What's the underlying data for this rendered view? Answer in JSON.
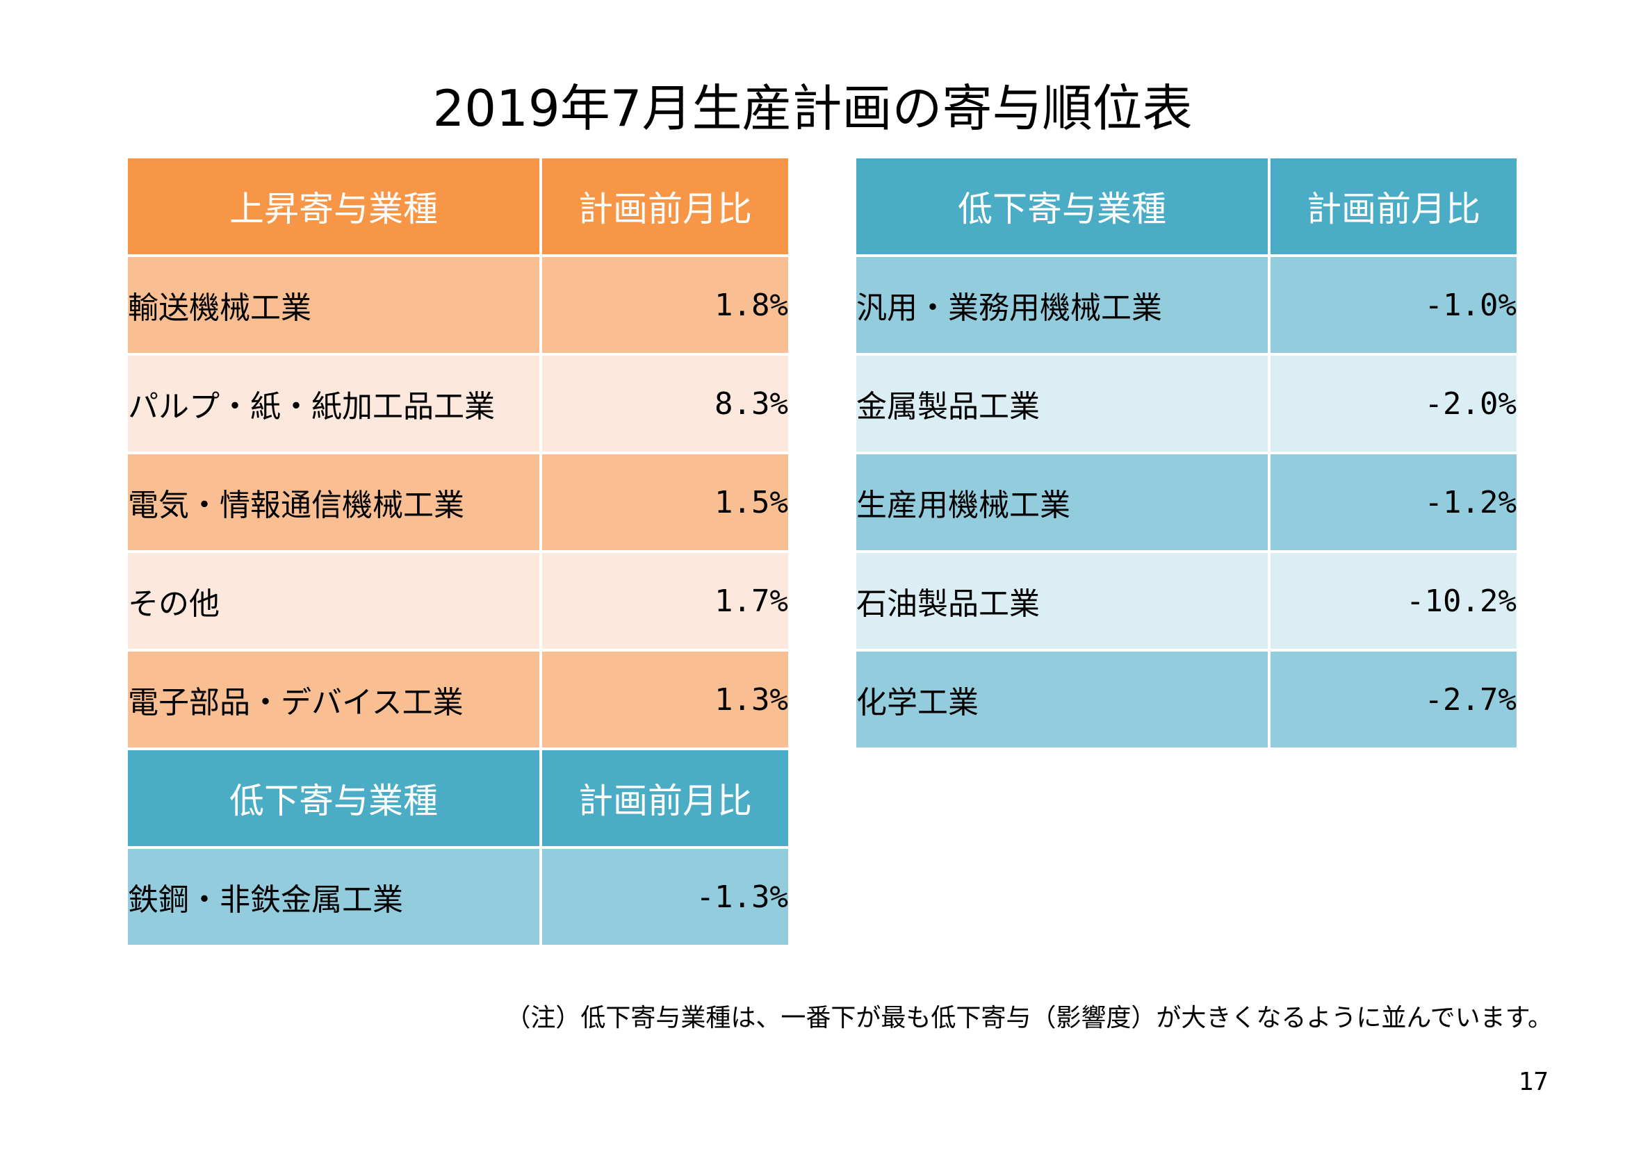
{
  "title": "2019年7月生産計画の寄与順位表",
  "left": {
    "header": {
      "name": "上昇寄与業種",
      "value": "計画前月比"
    },
    "rows": [
      {
        "name": "輸送機械工業",
        "value": "1.8%"
      },
      {
        "name": "パルプ・紙・紙加工品工業",
        "value": "8.3%"
      },
      {
        "name": "電気・情報通信機械工業",
        "value": "1.5%"
      },
      {
        "name": "その他",
        "value": "1.7%"
      },
      {
        "name": "電子部品・デバイス工業",
        "value": "1.3%"
      }
    ],
    "sub_header": {
      "name": "低下寄与業種",
      "value": "計画前月比"
    },
    "sub_rows": [
      {
        "name": "鉄鋼・非鉄金属工業",
        "value": "-1.3%"
      }
    ]
  },
  "right": {
    "header": {
      "name": "低下寄与業種",
      "value": "計画前月比"
    },
    "rows": [
      {
        "name": "汎用・業務用機械工業",
        "value": "-1.0%"
      },
      {
        "name": "金属製品工業",
        "value": "-2.0%"
      },
      {
        "name": "生産用機械工業",
        "value": "-1.2%"
      },
      {
        "name": "石油製品工業",
        "value": "-10.2%"
      },
      {
        "name": "化学工業",
        "value": "-2.7%"
      }
    ]
  },
  "note": "（注）低下寄与業種は、一番下が最も低下寄与（影響度）が大きくなるように並んでいます。",
  "page_number": "17",
  "colors": {
    "orange_header": "#f79646",
    "orange_dark": "#f9bf92",
    "orange_light": "#fce8dc",
    "blue_header": "#4bacc6",
    "blue_dark": "#93cddd",
    "blue_light": "#dbeef4"
  }
}
